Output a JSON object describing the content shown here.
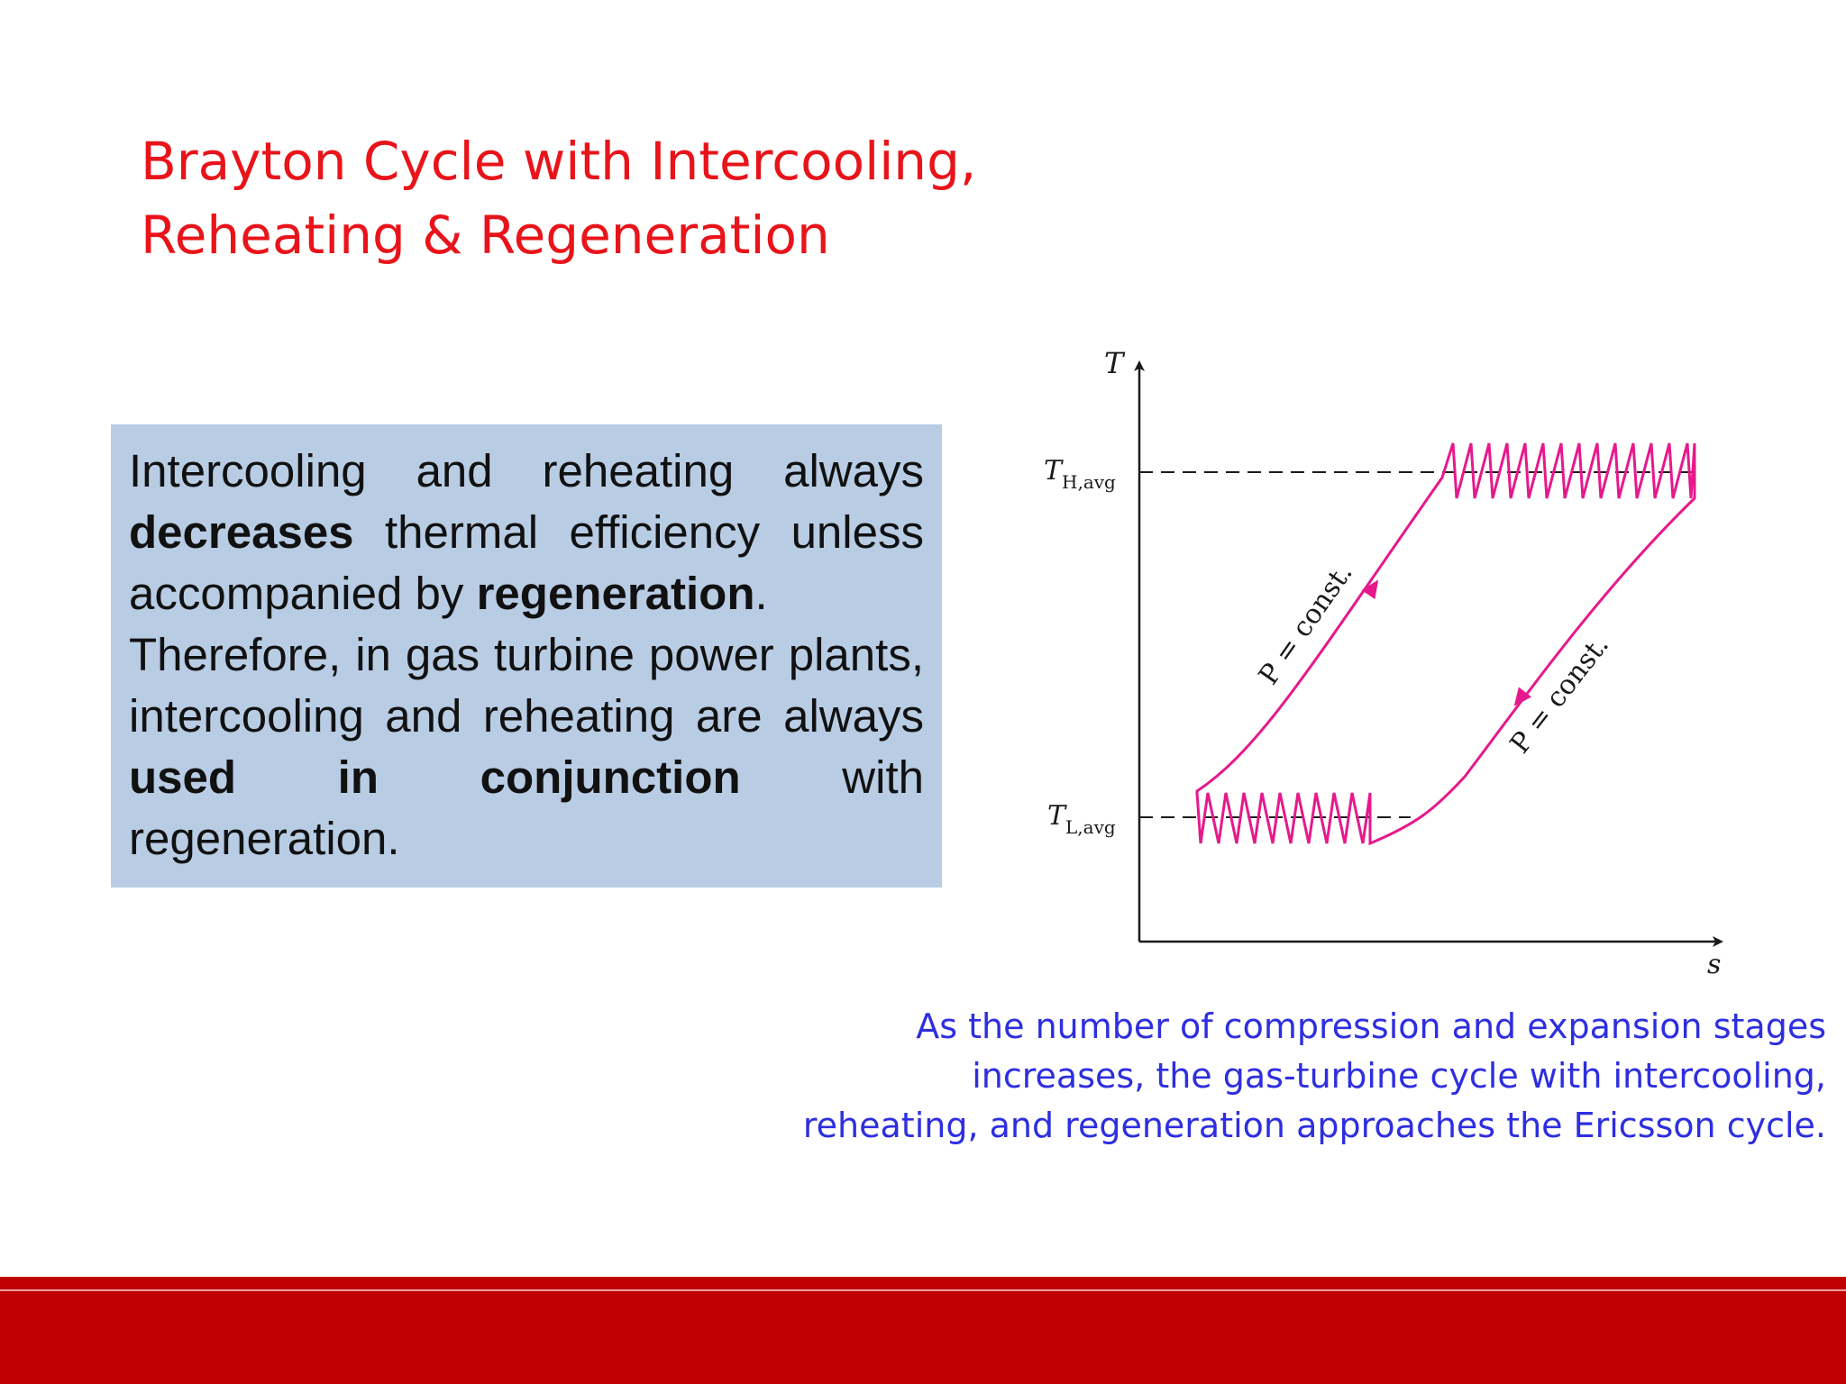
{
  "slide": {
    "title_lines": [
      "Brayton Cycle with Intercooling,",
      "Reheating & Regeneration"
    ]
  },
  "textbox": {
    "para1": {
      "w1": "Intercooling",
      "w2": "and",
      "w3": "reheating",
      "w4": "always",
      "bold1": "decreases",
      "mid1": " thermal efficiency unless accompanied by ",
      "bold2": "regeneration",
      "end1": "."
    },
    "para2": {
      "start": "Therefore, in gas turbine power plants, intercooling and reheating are always ",
      "bold": "used in conjunction",
      "end": " with regeneration."
    }
  },
  "diagram": {
    "axis_y_label": "T",
    "axis_x_label": "s",
    "th_label": "T",
    "th_sub": "H,avg",
    "tl_label": "T",
    "tl_sub": "L,avg",
    "left_curve_label": "P = const.",
    "right_curve_label": "P = const.",
    "cycle_color": "#e6198c",
    "axis_color": "#1a1a1a"
  },
  "caption": {
    "lines": [
      "As the number of compression and expansion stages",
      "increases, the gas-turbine cycle with intercooling,",
      "reheating, and regeneration approaches the Ericsson cycle."
    ]
  },
  "footer": {
    "color": "#c00000"
  }
}
